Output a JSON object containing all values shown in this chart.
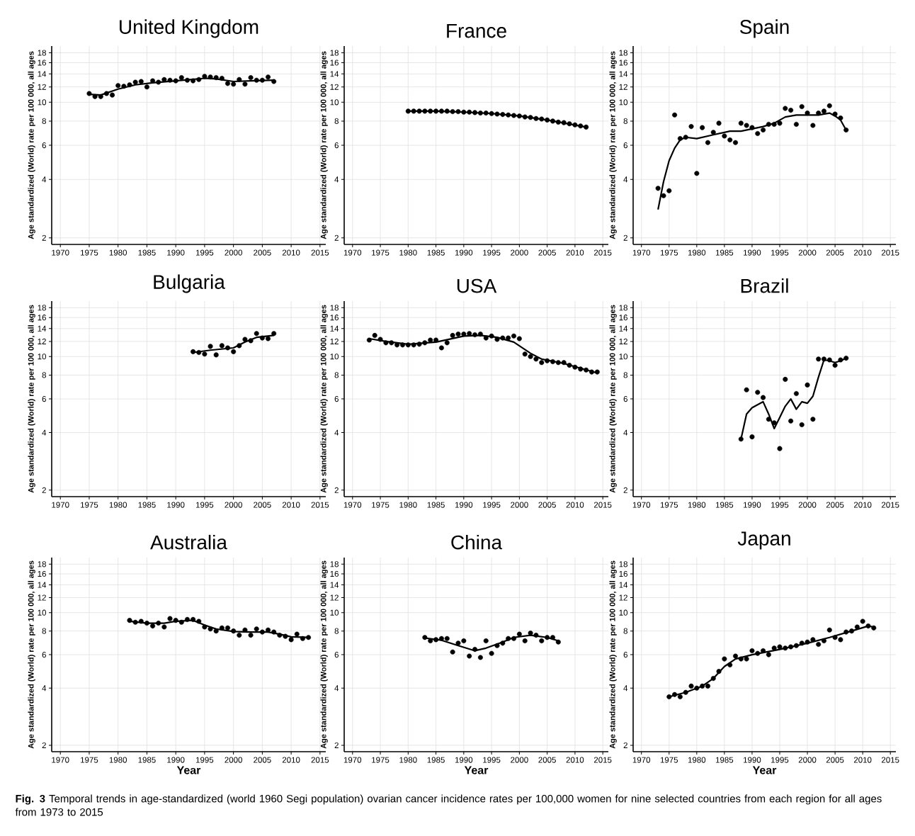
{
  "chart_data": [
    {
      "type": "scatter",
      "title": "United Kingdom",
      "ylabel": "Age standardized (World) rate per 100 000, all ages",
      "xlim": [
        1968.5,
        2016
      ],
      "ylim": [
        1.85,
        19.5
      ],
      "xticks": [
        1970,
        1975,
        1980,
        1985,
        1990,
        1995,
        2000,
        2005,
        2010,
        2015
      ],
      "yticks": [
        2,
        4,
        6,
        8,
        10,
        12,
        14,
        16,
        18
      ],
      "log": true,
      "grid": true,
      "series": [
        {
          "type": "scatter",
          "marker": "circle",
          "color": "#000000",
          "x": [
            1975,
            1976,
            1977,
            1978,
            1979,
            1980,
            1981,
            1982,
            1983,
            1984,
            1985,
            1986,
            1987,
            1988,
            1989,
            1990,
            1991,
            1992,
            1993,
            1994,
            1995,
            1996,
            1997,
            1998,
            1999,
            2000,
            2001,
            2002,
            2003,
            2004,
            2005,
            2006,
            2007
          ],
          "values": [
            11.1,
            10.7,
            10.7,
            11.1,
            10.9,
            12.2,
            12.1,
            12.3,
            12.7,
            12.8,
            12.0,
            12.9,
            12.7,
            13.1,
            13.0,
            12.9,
            13.4,
            13.0,
            12.9,
            13.1,
            13.6,
            13.5,
            13.4,
            13.3,
            12.5,
            12.4,
            13.1,
            12.4,
            13.4,
            13.0,
            13.0,
            13.5,
            12.8
          ]
        },
        {
          "type": "line",
          "marker": "none",
          "line_style": "solid",
          "color": "#000000",
          "x": [
            1975,
            1977,
            1980,
            1983,
            1986,
            1990,
            1995,
            1997,
            2000,
            2003,
            2007
          ],
          "values": [
            11.0,
            10.9,
            11.7,
            12.3,
            12.6,
            12.9,
            13.3,
            13.2,
            12.8,
            12.9,
            13.0
          ]
        }
      ]
    },
    {
      "type": "scatter",
      "title": "France",
      "ylabel": "Age standardized (World) rate per 100 000, all ages",
      "xlim": [
        1968.5,
        2016
      ],
      "ylim": [
        1.85,
        19.5
      ],
      "xticks": [
        1970,
        1975,
        1980,
        1985,
        1990,
        1995,
        2000,
        2005,
        2010,
        2015
      ],
      "yticks": [
        2,
        4,
        6,
        8,
        10,
        12,
        14,
        16,
        18
      ],
      "log": true,
      "grid": true,
      "series": [
        {
          "type": "scatter",
          "marker": "circle",
          "color": "#000000",
          "x": [
            1980,
            1981,
            1982,
            1983,
            1984,
            1985,
            1986,
            1987,
            1988,
            1989,
            1990,
            1991,
            1992,
            1993,
            1994,
            1995,
            1996,
            1997,
            1998,
            1999,
            2000,
            2001,
            2002,
            2003,
            2004,
            2005,
            2006,
            2007,
            2008,
            2009,
            2010,
            2011,
            2012
          ],
          "values": [
            9.0,
            9.0,
            9.0,
            9.0,
            9.0,
            9.0,
            9.0,
            9.0,
            8.95,
            8.95,
            8.9,
            8.9,
            8.85,
            8.8,
            8.8,
            8.75,
            8.7,
            8.65,
            8.6,
            8.55,
            8.5,
            8.4,
            8.35,
            8.25,
            8.2,
            8.1,
            8.0,
            7.9,
            7.85,
            7.75,
            7.65,
            7.55,
            7.45
          ]
        },
        {
          "type": "line",
          "marker": "none",
          "line_style": "solid",
          "color": "#000000",
          "x": [
            1980,
            1985,
            1990,
            1995,
            2000,
            2005,
            2012
          ],
          "values": [
            9.0,
            9.0,
            8.9,
            8.75,
            8.5,
            8.1,
            7.45
          ]
        }
      ]
    },
    {
      "type": "scatter",
      "title": "Spain",
      "ylabel": "Age standardized (World) rate per 100 000, all ages",
      "xlim": [
        1968.5,
        2016
      ],
      "ylim": [
        1.85,
        19.5
      ],
      "xticks": [
        1970,
        1975,
        1980,
        1985,
        1990,
        1995,
        2000,
        2005,
        2010,
        2015
      ],
      "yticks": [
        2,
        4,
        6,
        8,
        10,
        12,
        14,
        16,
        18
      ],
      "log": true,
      "grid": true,
      "series": [
        {
          "type": "scatter",
          "marker": "circle",
          "color": "#000000",
          "x": [
            1973,
            1974,
            1975,
            1976,
            1977,
            1978,
            1979,
            1980,
            1981,
            1982,
            1983,
            1984,
            1985,
            1986,
            1987,
            1988,
            1989,
            1990,
            1991,
            1992,
            1993,
            1994,
            1995,
            1996,
            1997,
            1998,
            1999,
            2000,
            2001,
            2002,
            2003,
            2004,
            2005,
            2006,
            2007
          ],
          "values": [
            3.6,
            3.3,
            3.5,
            8.6,
            6.5,
            6.6,
            7.5,
            4.3,
            7.4,
            6.2,
            7.0,
            7.8,
            6.7,
            6.4,
            6.2,
            7.8,
            7.6,
            7.4,
            6.9,
            7.2,
            7.7,
            7.7,
            7.8,
            9.3,
            9.1,
            7.7,
            9.5,
            8.8,
            7.6,
            8.8,
            9.0,
            9.6,
            8.7,
            8.3,
            7.2
          ]
        },
        {
          "type": "line",
          "marker": "none",
          "line_style": "solid",
          "color": "#000000",
          "x": [
            1973,
            1974,
            1975,
            1976,
            1977,
            1978,
            1980,
            1983,
            1986,
            1988,
            1992,
            1994,
            1996,
            1998,
            2002,
            2004,
            2005,
            2006,
            2007
          ],
          "values": [
            2.8,
            3.9,
            5.0,
            5.8,
            6.4,
            6.6,
            6.5,
            6.8,
            7.1,
            7.1,
            7.5,
            7.8,
            8.4,
            8.6,
            8.6,
            8.8,
            8.5,
            8.1,
            7.2
          ]
        }
      ]
    },
    {
      "type": "scatter",
      "title": "Bulgaria",
      "ylabel": "Age standardized (World) rate per 100 000, all ages",
      "xlim": [
        1968.5,
        2016
      ],
      "ylim": [
        1.85,
        19.5
      ],
      "xticks": [
        1970,
        1975,
        1980,
        1985,
        1990,
        1995,
        2000,
        2005,
        2010,
        2015
      ],
      "yticks": [
        2,
        4,
        6,
        8,
        10,
        12,
        14,
        16,
        18
      ],
      "log": true,
      "grid": true,
      "series": [
        {
          "type": "scatter",
          "marker": "circle",
          "color": "#000000",
          "x": [
            1993,
            1994,
            1995,
            1996,
            1997,
            1998,
            1999,
            2000,
            2001,
            2002,
            2003,
            2004,
            2005,
            2006,
            2007
          ],
          "values": [
            10.6,
            10.5,
            10.3,
            11.3,
            10.2,
            11.4,
            11.1,
            10.6,
            11.4,
            12.3,
            12.1,
            13.2,
            12.5,
            12.4,
            13.2
          ]
        },
        {
          "type": "line",
          "marker": "none",
          "line_style": "solid",
          "color": "#000000",
          "x": [
            1993,
            1996,
            2000,
            2002,
            2004,
            2007
          ],
          "values": [
            10.5,
            10.8,
            11.1,
            11.9,
            12.6,
            12.9
          ]
        }
      ]
    },
    {
      "type": "scatter",
      "title": "USA",
      "ylabel": "Age standardized (World) rate per 100 000, all ages",
      "xlim": [
        1968.5,
        2016
      ],
      "ylim": [
        1.85,
        19.5
      ],
      "xticks": [
        1970,
        1975,
        1980,
        1985,
        1990,
        1995,
        2000,
        2005,
        2010,
        2015
      ],
      "yticks": [
        2,
        4,
        6,
        8,
        10,
        12,
        14,
        16,
        18
      ],
      "log": true,
      "grid": true,
      "series": [
        {
          "type": "scatter",
          "marker": "circle",
          "color": "#000000",
          "x": [
            1973,
            1974,
            1975,
            1976,
            1977,
            1978,
            1979,
            1980,
            1981,
            1982,
            1983,
            1984,
            1985,
            1986,
            1987,
            1988,
            1989,
            1990,
            1991,
            1992,
            1993,
            1994,
            1995,
            1996,
            1997,
            1998,
            1999,
            2000,
            2001,
            2002,
            2003,
            2004,
            2005,
            2006,
            2007,
            2008,
            2009,
            2010,
            2011,
            2012,
            2013,
            2014
          ],
          "values": [
            12.2,
            12.9,
            12.3,
            11.8,
            11.8,
            11.5,
            11.5,
            11.5,
            11.5,
            11.6,
            11.8,
            12.2,
            12.2,
            11.1,
            11.8,
            12.9,
            13.1,
            13.1,
            13.2,
            13.0,
            13.1,
            12.5,
            12.8,
            12.3,
            12.5,
            12.5,
            12.8,
            12.4,
            10.3,
            10.0,
            9.7,
            9.3,
            9.5,
            9.4,
            9.3,
            9.3,
            9.0,
            8.8,
            8.6,
            8.5,
            8.3,
            8.3
          ]
        },
        {
          "type": "line",
          "marker": "none",
          "line_style": "solid",
          "color": "#000000",
          "x": [
            1973,
            1976,
            1980,
            1985,
            1990,
            1993,
            1996,
            1999,
            2002,
            2004,
            2008,
            2014
          ],
          "values": [
            12.4,
            12.0,
            11.6,
            11.9,
            12.8,
            12.9,
            12.6,
            11.9,
            10.4,
            9.7,
            9.2,
            8.2
          ]
        }
      ]
    },
    {
      "type": "scatter",
      "title": "Brazil",
      "ylabel": "Age standardized (World) rate per 100 000, all ages",
      "xlim": [
        1968.5,
        2016
      ],
      "ylim": [
        1.85,
        19.5
      ],
      "xticks": [
        1970,
        1975,
        1980,
        1985,
        1990,
        1995,
        2000,
        2005,
        2010,
        2015
      ],
      "yticks": [
        2,
        4,
        6,
        8,
        10,
        12,
        14,
        16,
        18
      ],
      "log": true,
      "grid": true,
      "series": [
        {
          "type": "scatter",
          "marker": "circle",
          "color": "#000000",
          "x": [
            1988,
            1989,
            1990,
            1991,
            1992,
            1993,
            1994,
            1995,
            1996,
            1997,
            1998,
            1999,
            2000,
            2001,
            2002,
            2003,
            2004,
            2005,
            2006,
            2007
          ],
          "values": [
            3.7,
            6.7,
            3.8,
            6.5,
            6.1,
            4.7,
            4.5,
            3.3,
            7.6,
            4.6,
            6.4,
            4.4,
            7.1,
            4.7,
            9.7,
            9.7,
            9.6,
            9.0,
            9.6,
            9.8
          ]
        },
        {
          "type": "line",
          "marker": "none",
          "line_style": "solid",
          "color": "#000000",
          "x": [
            1988,
            1989,
            1990,
            1991,
            1992,
            1993,
            1994,
            1995,
            1996,
            1997,
            1998,
            1999,
            2000,
            2001,
            2002,
            2003,
            2004,
            2005,
            2006,
            2007
          ],
          "values": [
            3.7,
            5.0,
            5.4,
            5.6,
            5.8,
            5.0,
            4.2,
            4.8,
            5.5,
            6.0,
            5.3,
            5.8,
            5.7,
            6.2,
            7.8,
            9.6,
            9.5,
            9.3,
            9.5,
            9.8
          ]
        }
      ]
    },
    {
      "type": "scatter",
      "title": "Australia",
      "xlabel": "Year",
      "ylabel": "Age standardized (World) rate per 100 000, all ages",
      "xlim": [
        1968.5,
        2016
      ],
      "ylim": [
        1.85,
        19.5
      ],
      "xticks": [
        1970,
        1975,
        1980,
        1985,
        1990,
        1995,
        2000,
        2005,
        2010,
        2015
      ],
      "yticks": [
        2,
        4,
        6,
        8,
        10,
        12,
        14,
        16,
        18
      ],
      "log": true,
      "grid": true,
      "series": [
        {
          "type": "scatter",
          "marker": "circle",
          "color": "#000000",
          "x": [
            1982,
            1983,
            1984,
            1985,
            1986,
            1987,
            1988,
            1989,
            1990,
            1991,
            1992,
            1993,
            1994,
            1995,
            1996,
            1997,
            1998,
            1999,
            2000,
            2001,
            2002,
            2003,
            2004,
            2005,
            2006,
            2007,
            2008,
            2009,
            2010,
            2011,
            2012,
            2013
          ],
          "values": [
            9.1,
            8.9,
            9.0,
            8.8,
            8.5,
            8.8,
            8.4,
            9.3,
            9.1,
            8.9,
            9.2,
            9.2,
            9.0,
            8.4,
            8.2,
            8.0,
            8.3,
            8.3,
            8.0,
            7.6,
            8.1,
            7.6,
            8.2,
            7.9,
            8.1,
            7.9,
            7.6,
            7.5,
            7.2,
            7.7,
            7.3,
            7.4
          ]
        },
        {
          "type": "line",
          "marker": "none",
          "line_style": "solid",
          "color": "#000000",
          "x": [
            1982,
            1985,
            1988,
            1990,
            1993,
            1995,
            1997,
            2000,
            2003,
            2006,
            2008,
            2010,
            2013
          ],
          "values": [
            9.0,
            8.8,
            8.8,
            9.0,
            9.1,
            8.6,
            8.2,
            7.95,
            7.9,
            7.9,
            7.7,
            7.45,
            7.4
          ]
        }
      ]
    },
    {
      "type": "scatter",
      "title": "China",
      "xlabel": "Year",
      "ylabel": "Age standardized (World) rate per 100 000, all ages",
      "xlim": [
        1968.5,
        2016
      ],
      "ylim": [
        1.85,
        19.5
      ],
      "xticks": [
        1970,
        1975,
        1980,
        1985,
        1990,
        1995,
        2000,
        2005,
        2010,
        2015
      ],
      "yticks": [
        2,
        4,
        6,
        8,
        10,
        12,
        14,
        16,
        18
      ],
      "log": true,
      "grid": true,
      "series": [
        {
          "type": "scatter",
          "marker": "circle",
          "color": "#000000",
          "x": [
            1983,
            1984,
            1985,
            1986,
            1987,
            1988,
            1989,
            1990,
            1991,
            1992,
            1993,
            1994,
            1995,
            1996,
            1997,
            1998,
            1999,
            2000,
            2001,
            2002,
            2003,
            2004,
            2005,
            2006,
            2007
          ],
          "values": [
            7.4,
            7.1,
            7.2,
            7.3,
            7.3,
            6.2,
            6.9,
            7.1,
            5.9,
            6.4,
            5.8,
            7.1,
            6.1,
            6.7,
            6.9,
            7.3,
            7.3,
            7.7,
            7.1,
            7.8,
            7.6,
            7.1,
            7.4,
            7.4,
            7.0
          ]
        },
        {
          "type": "line",
          "marker": "none",
          "line_style": "solid",
          "color": "#000000",
          "x": [
            1983,
            1986,
            1989,
            1992,
            1994,
            1997,
            1999,
            2002,
            2005,
            2007
          ],
          "values": [
            7.35,
            7.15,
            6.7,
            6.3,
            6.5,
            7.0,
            7.4,
            7.6,
            7.4,
            7.1
          ]
        }
      ]
    },
    {
      "type": "scatter",
      "title": "Japan",
      "xlabel": "Year",
      "ylabel": "Age standardized (World) rate per 100 000, all ages",
      "xlim": [
        1968.5,
        2016
      ],
      "ylim": [
        1.85,
        19.5
      ],
      "xticks": [
        1970,
        1975,
        1980,
        1985,
        1990,
        1995,
        2000,
        2005,
        2010,
        2015
      ],
      "yticks": [
        2,
        4,
        6,
        8,
        10,
        12,
        14,
        16,
        18
      ],
      "log": true,
      "grid": true,
      "annotations": [
        "**Fig. 3** Temporal trends in age-standardized (world 1960 Segi population) ovarian cancer incidence rates per 100,000 women for nine selected countries from each region for all ages from 1973 to 2015"
      ],
      "series": [
        {
          "type": "scatter",
          "marker": "circle",
          "color": "#000000",
          "x": [
            1975,
            1976,
            1977,
            1978,
            1979,
            1980,
            1981,
            1982,
            1983,
            1984,
            1985,
            1986,
            1987,
            1988,
            1989,
            1990,
            1991,
            1992,
            1993,
            1994,
            1995,
            1996,
            1997,
            1998,
            1999,
            2000,
            2001,
            2002,
            2003,
            2004,
            2005,
            2006,
            2007,
            2008,
            2009,
            2010,
            2011,
            2012
          ],
          "values": [
            3.6,
            3.7,
            3.6,
            3.8,
            4.1,
            4.0,
            4.1,
            4.1,
            4.5,
            4.9,
            5.7,
            5.3,
            5.9,
            5.7,
            5.7,
            6.3,
            6.1,
            6.3,
            6.0,
            6.5,
            6.6,
            6.5,
            6.6,
            6.7,
            6.9,
            7.0,
            7.2,
            6.8,
            7.1,
            8.1,
            7.4,
            7.2,
            7.9,
            8.0,
            8.4,
            9.0,
            8.5,
            8.3
          ]
        },
        {
          "type": "line",
          "marker": "none",
          "line_style": "solid",
          "color": "#000000",
          "x": [
            1975,
            1978,
            1981,
            1983,
            1985,
            1987,
            1990,
            1995,
            2000,
            2004,
            2008,
            2011,
            2012
          ],
          "values": [
            3.6,
            3.8,
            4.1,
            4.5,
            5.2,
            5.7,
            6.0,
            6.4,
            6.9,
            7.4,
            8.0,
            8.5,
            8.4
          ]
        }
      ]
    }
  ]
}
